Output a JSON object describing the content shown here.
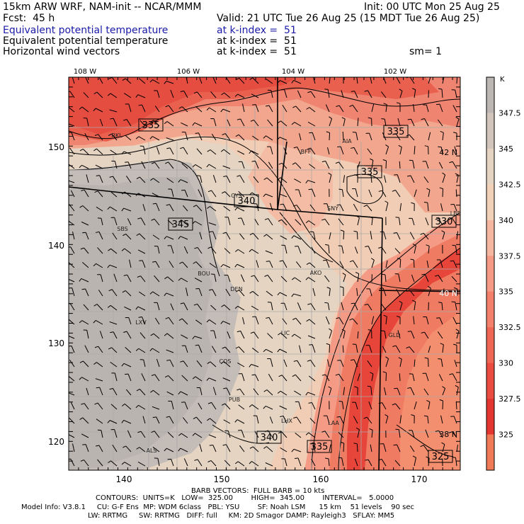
{
  "header": {
    "title_left": "15km ARW WRF, NAM-init -- NCAR/MMM",
    "init": "Init: 00 UTC Mon 25 Aug 25",
    "fcst": "Fcst:  45 h",
    "valid": "Valid: 21 UTC Tue 26 Aug 25 (15 MDT Tue 26 Aug 25)",
    "fields": [
      {
        "name": "Equivalent potential temperature",
        "level": "at k-index =  51",
        "color": "#1a1aa8"
      },
      {
        "name": "Equivalent potential temperature",
        "level": "at k-index =  51",
        "color": "#000000"
      },
      {
        "name": "Horizontal wind vectors",
        "level": "at k-index =  51",
        "color": "#000000"
      }
    ],
    "smoothing": "sm= 1"
  },
  "top_lon_labels": [
    "108 W",
    "106 W",
    "104 W",
    "102 W"
  ],
  "right_lat_labels": [
    "42 N",
    "40 N",
    "38 N"
  ],
  "x_axis_labels": [
    "140",
    "150",
    "160",
    "170"
  ],
  "y_axis_labels": [
    "150",
    "140",
    "130",
    "120"
  ],
  "contour_labels": [
    "335",
    "335",
    "335",
    "340",
    "345",
    "330",
    "340",
    "335",
    "325"
  ],
  "cities": [
    "RKL",
    "BFF",
    "AIA",
    "CYS",
    "SNY",
    "SBS",
    "BOU",
    "DEN",
    "AKO",
    "LXV",
    "LIC",
    "GLD",
    "COS",
    "PUB",
    "LHX",
    "LAA",
    "ALS",
    "LBF"
  ],
  "colorbar": {
    "unit": "K",
    "labels": [
      "347.5",
      "345",
      "342.5",
      "340",
      "337.5",
      "335",
      "332.5",
      "330",
      "327.5",
      "325"
    ],
    "colors": [
      "#bdb7b3",
      "#d2c6bc",
      "#e6d4c2",
      "#f2d1b9",
      "#f5b79f",
      "#f59b85",
      "#f3806b",
      "#ef6654",
      "#ea4c3f",
      "#e43631",
      "#f07a55"
    ]
  },
  "footer": {
    "barb": "BARB VECTORS:  FULL BARB = 10 kts",
    "contours": "CONTOURS:  UNITS=K   LOW=  325.00        HIGH=  345.00        INTERVAL=   5.0000",
    "model1": "Model Info: V3.8.1     CU: G-F Ens  MP: WDM 6class   PBL: YSU        SF: Noah LSM      15 km    51 levels    90 sec",
    "model2": "LW: RRTMG     SW: RRTMG   DIFF: full     KM: 2D Smagor DAMP: Rayleigh3   SFLAY: MM5"
  }
}
